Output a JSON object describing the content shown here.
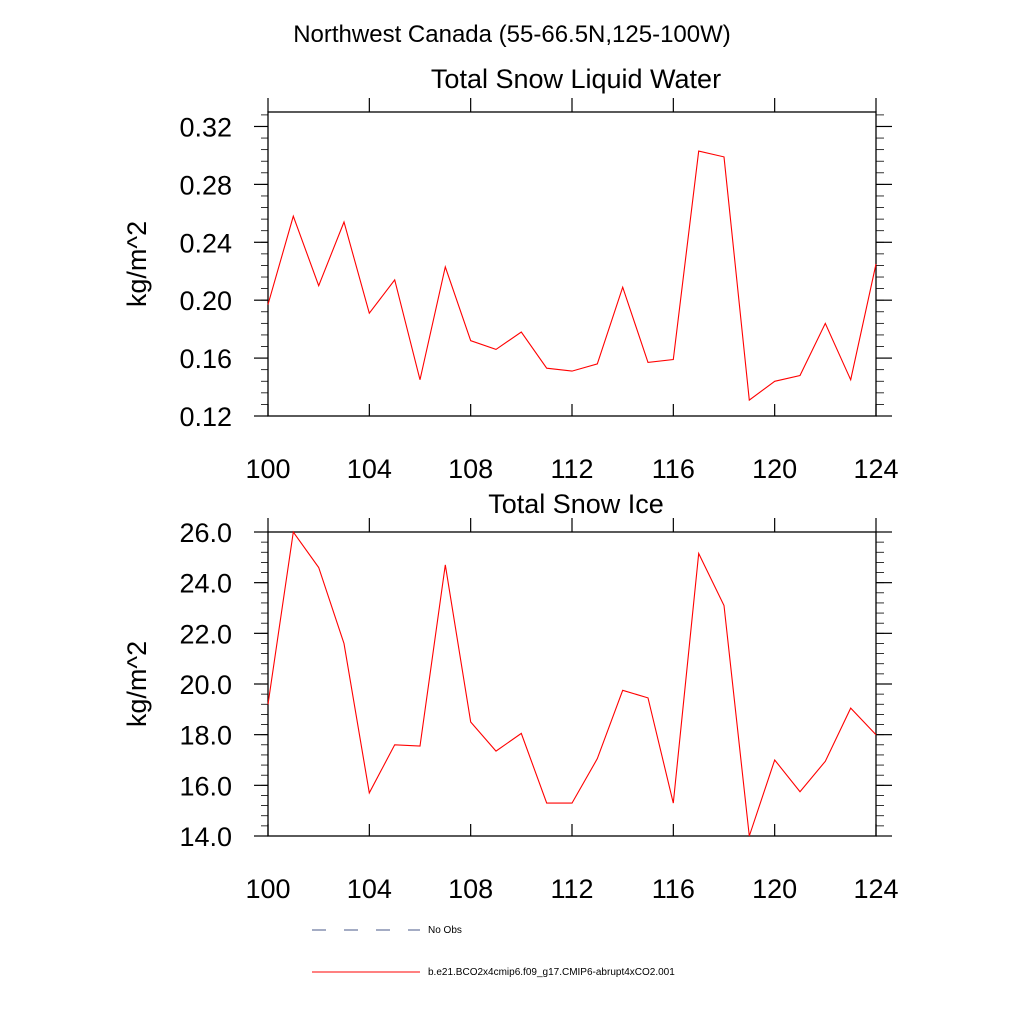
{
  "figure_title": "Northwest Canada (55-66.5N,125-100W)",
  "legend": [
    {
      "label": "No Obs",
      "style": "dashed",
      "color": "#4a5a8a"
    },
    {
      "label": "b.e21.BCO2x4cmip6.f09_g17.CMIP6-abrupt4xCO2.001",
      "style": "solid",
      "color": "#ff0000"
    }
  ],
  "chart_data": [
    {
      "type": "line",
      "title": "Total Snow Liquid Water",
      "xlabel": "",
      "ylabel": "kg/m^2",
      "xlim": [
        100,
        124
      ],
      "ylim": [
        0.12,
        0.33
      ],
      "xticks": [
        100,
        104,
        108,
        112,
        116,
        120,
        124
      ],
      "xtick_labels": [
        "100",
        "104",
        "108",
        "112",
        "116",
        "120",
        "124"
      ],
      "yticks": [
        0.12,
        0.16,
        0.2,
        0.24,
        0.28,
        0.32
      ],
      "ytick_labels": [
        "0.12",
        "0.16",
        "0.20",
        "0.24",
        "0.28",
        "0.32"
      ],
      "series": [
        {
          "name": "b.e21.BCO2x4cmip6.f09_g17.CMIP6-abrupt4xCO2.001",
          "color": "#ff0000",
          "x": [
            100,
            101,
            102,
            103,
            104,
            105,
            106,
            107,
            108,
            109,
            110,
            111,
            112,
            113,
            114,
            115,
            116,
            117,
            118,
            119,
            120,
            121,
            122,
            123,
            124
          ],
          "values": [
            0.197,
            0.258,
            0.21,
            0.254,
            0.191,
            0.214,
            0.145,
            0.223,
            0.172,
            0.166,
            0.178,
            0.153,
            0.151,
            0.156,
            0.209,
            0.157,
            0.159,
            0.303,
            0.299,
            0.131,
            0.144,
            0.148,
            0.184,
            0.145,
            0.225
          ]
        }
      ]
    },
    {
      "type": "line",
      "title": "Total Snow Ice",
      "xlabel": "",
      "ylabel": "kg/m^2",
      "xlim": [
        100,
        124
      ],
      "ylim": [
        14.0,
        26.0
      ],
      "xticks": [
        100,
        104,
        108,
        112,
        116,
        120,
        124
      ],
      "xtick_labels": [
        "100",
        "104",
        "108",
        "112",
        "116",
        "120",
        "124"
      ],
      "yticks": [
        14.0,
        16.0,
        18.0,
        20.0,
        22.0,
        24.0,
        26.0
      ],
      "ytick_labels": [
        "14.0",
        "16.0",
        "18.0",
        "20.0",
        "22.0",
        "24.0",
        "26.0"
      ],
      "series": [
        {
          "name": "b.e21.BCO2x4cmip6.f09_g17.CMIP6-abrupt4xCO2.001",
          "color": "#ff0000",
          "x": [
            100,
            101,
            102,
            103,
            104,
            105,
            106,
            107,
            108,
            109,
            110,
            111,
            112,
            113,
            114,
            115,
            116,
            117,
            118,
            119,
            120,
            121,
            122,
            123,
            124
          ],
          "values": [
            19.2,
            26.0,
            24.6,
            21.6,
            15.7,
            17.6,
            17.55,
            24.7,
            18.5,
            17.35,
            18.05,
            15.3,
            15.3,
            17.05,
            19.75,
            19.45,
            15.3,
            25.15,
            23.1,
            14.0,
            17.0,
            15.75,
            16.95,
            19.05,
            18.0
          ]
        }
      ]
    }
  ]
}
